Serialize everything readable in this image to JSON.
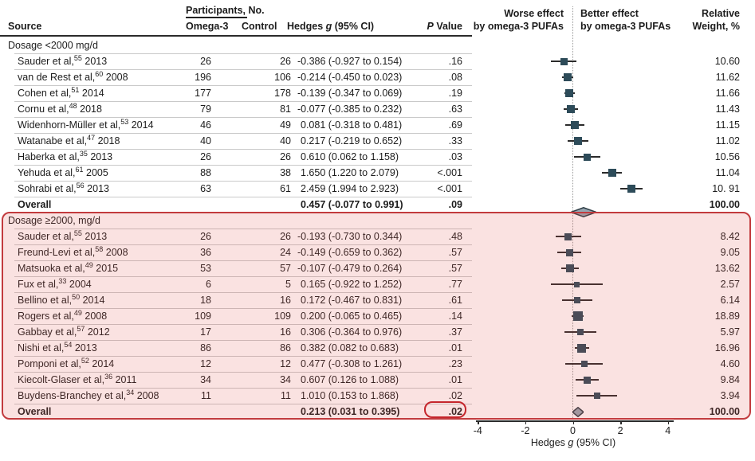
{
  "header": {
    "participants_group": "Participants, No.",
    "col_source": "Source",
    "col_omega3": "Omega-3",
    "col_control": "Control",
    "hedges_pre": "Hedges",
    "hedges_g": "g",
    "hedges_post": "(95% CI)",
    "p_italic": "P",
    "p_rest": "Value",
    "worse_line1": "Worse effect",
    "worse_line2": "by omega-3 PUFAs",
    "better_line1": "Better effect",
    "better_line2": "by omega-3 PUFAs",
    "weight_line1": "Relative",
    "weight_line2": "Weight, %"
  },
  "colors": {
    "marker": "#2d4b59",
    "ci_line": "#2b2b2b",
    "diamond_fill": "#96a5b0",
    "diamond_stroke": "#2f3e46",
    "highlight_fill": "rgba(224,85,76,0.17)",
    "highlight_border": "#c23b3e",
    "callout_border": "#c5262c",
    "separator": "#c9c9c9",
    "zero_line": "#9a9a9a"
  },
  "chart_data": {
    "type": "forest",
    "x_axis": {
      "ticks": [
        -4,
        -2,
        0,
        2,
        4
      ],
      "min": -4,
      "max": 4,
      "label_pre": "Hedges",
      "label_g": "g",
      "label_post": "(95% CI)"
    },
    "groups": [
      {
        "label": "Dosage <2000 mg/d",
        "highlighted": false,
        "studies": [
          {
            "source": "Sauder et al,",
            "ref": "55",
            "year": "2013",
            "omega3": "26",
            "control": "26",
            "estimate": -0.386,
            "ci_low": -0.927,
            "ci_high": 0.154,
            "hedges_text": "-0.386 (-0.927 to 0.154)",
            "p": ".16",
            "weight": 10.6,
            "weight_text": "10.60"
          },
          {
            "source": "van de Rest et al,",
            "ref": "60",
            "year": "2008",
            "omega3": "196",
            "control": "106",
            "estimate": -0.214,
            "ci_low": -0.45,
            "ci_high": 0.023,
            "hedges_text": "-0.214 (-0.450 to 0.023)",
            "p": ".08",
            "weight": 11.62,
            "weight_text": "11.62"
          },
          {
            "source": "Cohen et al,",
            "ref": "51",
            "year": "2014",
            "omega3": "177",
            "control": "178",
            "estimate": -0.139,
            "ci_low": -0.347,
            "ci_high": 0.069,
            "hedges_text": "-0.139 (-0.347 to 0.069)",
            "p": ".19",
            "weight": 11.66,
            "weight_text": "11.66"
          },
          {
            "source": "Cornu et al,",
            "ref": "48",
            "year": "2018",
            "omega3": "79",
            "control": "81",
            "estimate": -0.077,
            "ci_low": -0.385,
            "ci_high": 0.232,
            "hedges_text": "-0.077 (-0.385 to 0.232)",
            "p": ".63",
            "weight": 11.43,
            "weight_text": "11.43"
          },
          {
            "source": "Widenhorn-Müller et al,",
            "ref": "53",
            "year": "2014",
            "omega3": "46",
            "control": "49",
            "estimate": 0.081,
            "ci_low": -0.318,
            "ci_high": 0.481,
            "hedges_text": "0.081 (-0.318 to 0.481)",
            "p": ".69",
            "weight": 11.15,
            "weight_text": "11.15"
          },
          {
            "source": "Watanabe et al,",
            "ref": "47",
            "year": "2018",
            "omega3": "40",
            "control": "40",
            "estimate": 0.217,
            "ci_low": -0.219,
            "ci_high": 0.652,
            "hedges_text": "0.217 (-0.219 to 0.652)",
            "p": ".33",
            "weight": 11.02,
            "weight_text": "11.02"
          },
          {
            "source": "Haberka et al,",
            "ref": "35",
            "year": "2013",
            "omega3": "26",
            "control": "26",
            "estimate": 0.61,
            "ci_low": 0.062,
            "ci_high": 1.158,
            "hedges_text": "0.610 (0.062 to 1.158)",
            "p": ".03",
            "weight": 10.56,
            "weight_text": "10.56"
          },
          {
            "source": "Yehuda et al,",
            "ref": "61",
            "year": "2005",
            "omega3": "88",
            "control": "38",
            "estimate": 1.65,
            "ci_low": 1.22,
            "ci_high": 2.079,
            "hedges_text": "1.650 (1.220 to 2.079)",
            "p": "<.001",
            "weight": 11.04,
            "weight_text": "11.04"
          },
          {
            "source": "Sohrabi et al,",
            "ref": "56",
            "year": "2013",
            "omega3": "63",
            "control": "61",
            "estimate": 2.459,
            "ci_low": 1.994,
            "ci_high": 2.923,
            "hedges_text": "2.459 (1.994 to 2.923)",
            "p": "<.001",
            "weight": 10.91,
            "weight_text": "10. 91"
          }
        ],
        "overall": {
          "label": "Overall",
          "estimate": 0.457,
          "ci_low": -0.077,
          "ci_high": 0.991,
          "hedges_text": "0.457 (-0.077 to 0.991)",
          "p": ".09",
          "weight_text": "100.00"
        }
      },
      {
        "label": "Dosage ≥2000, mg/d",
        "highlighted": true,
        "studies": [
          {
            "source": "Sauder et al,",
            "ref": "55",
            "year": "2013",
            "omega3": "26",
            "control": "26",
            "estimate": -0.193,
            "ci_low": -0.73,
            "ci_high": 0.344,
            "hedges_text": "-0.193 (-0.730 to 0.344)",
            "p": ".48",
            "weight": 8.42,
            "weight_text": "8.42"
          },
          {
            "source": "Freund-Levi et al,",
            "ref": "58",
            "year": "2008",
            "omega3": "36",
            "control": "24",
            "estimate": -0.149,
            "ci_low": -0.659,
            "ci_high": 0.362,
            "hedges_text": "-0.149 (-0.659 to 0.362)",
            "p": ".57",
            "weight": 9.05,
            "weight_text": "9.05"
          },
          {
            "source": "Matsuoka et al,",
            "ref": "49",
            "year": "2015",
            "omega3": "53",
            "control": "57",
            "estimate": -0.107,
            "ci_low": -0.479,
            "ci_high": 0.264,
            "hedges_text": "-0.107 (-0.479 to 0.264)",
            "p": ".57",
            "weight": 13.62,
            "weight_text": "13.62"
          },
          {
            "source": "Fux et al,",
            "ref": "33",
            "year": "2004",
            "omega3": "6",
            "control": "5",
            "estimate": 0.165,
            "ci_low": -0.922,
            "ci_high": 1.252,
            "hedges_text": "0.165 (-0.922 to 1.252)",
            "p": ".77",
            "weight": 2.57,
            "weight_text": "2.57"
          },
          {
            "source": "Bellino et al,",
            "ref": "50",
            "year": "2014",
            "omega3": "18",
            "control": "16",
            "estimate": 0.172,
            "ci_low": -0.467,
            "ci_high": 0.831,
            "hedges_text": "0.172 (-0.467 to 0.831)",
            "p": ".61",
            "weight": 6.14,
            "weight_text": "6.14"
          },
          {
            "source": "Rogers et al,",
            "ref": "49",
            "year": "2008",
            "omega3": "109",
            "control": "109",
            "estimate": 0.2,
            "ci_low": -0.065,
            "ci_high": 0.465,
            "hedges_text": "0.200 (-0.065 to 0.465)",
            "p": ".14",
            "weight": 18.89,
            "weight_text": "18.89"
          },
          {
            "source": "Gabbay et al,",
            "ref": "57",
            "year": "2012",
            "omega3": "17",
            "control": "16",
            "estimate": 0.306,
            "ci_low": -0.364,
            "ci_high": 0.976,
            "hedges_text": "0.306 (-0.364 to 0.976)",
            "p": ".37",
            "weight": 5.97,
            "weight_text": "5.97"
          },
          {
            "source": "Nishi et al,",
            "ref": "54",
            "year": "2013",
            "omega3": "86",
            "control": "86",
            "estimate": 0.382,
            "ci_low": 0.082,
            "ci_high": 0.683,
            "hedges_text": "0.382 (0.082 to 0.683)",
            "p": ".01",
            "weight": 16.96,
            "weight_text": "16.96"
          },
          {
            "source": "Pomponi et al,",
            "ref": "52",
            "year": "2014",
            "omega3": "12",
            "control": "12",
            "estimate": 0.477,
            "ci_low": -0.308,
            "ci_high": 1.261,
            "hedges_text": "0.477 (-0.308 to 1.261)",
            "p": ".23",
            "weight": 4.6,
            "weight_text": "4.60"
          },
          {
            "source": "Kiecolt-Glaser et al,",
            "ref": "36",
            "year": "2011",
            "omega3": "34",
            "control": "34",
            "estimate": 0.607,
            "ci_low": 0.126,
            "ci_high": 1.088,
            "hedges_text": "0.607 (0.126 to 1.088)",
            "p": ".01",
            "weight": 9.84,
            "weight_text": "9.84"
          },
          {
            "source": "Buydens-Branchey et al,",
            "ref": "34",
            "year": "2008",
            "omega3": "11",
            "control": "11",
            "estimate": 1.01,
            "ci_low": 0.153,
            "ci_high": 1.868,
            "hedges_text": "1.010 (0.153 to 1.868)",
            "p": ".02",
            "weight": 3.94,
            "weight_text": "3.94"
          }
        ],
        "overall": {
          "label": "Overall",
          "estimate": 0.213,
          "ci_low": 0.031,
          "ci_high": 0.395,
          "hedges_text": "0.213 (0.031 to 0.395)",
          "p": ".02",
          "weight_text": "100.00",
          "p_callout": true
        }
      }
    ]
  }
}
